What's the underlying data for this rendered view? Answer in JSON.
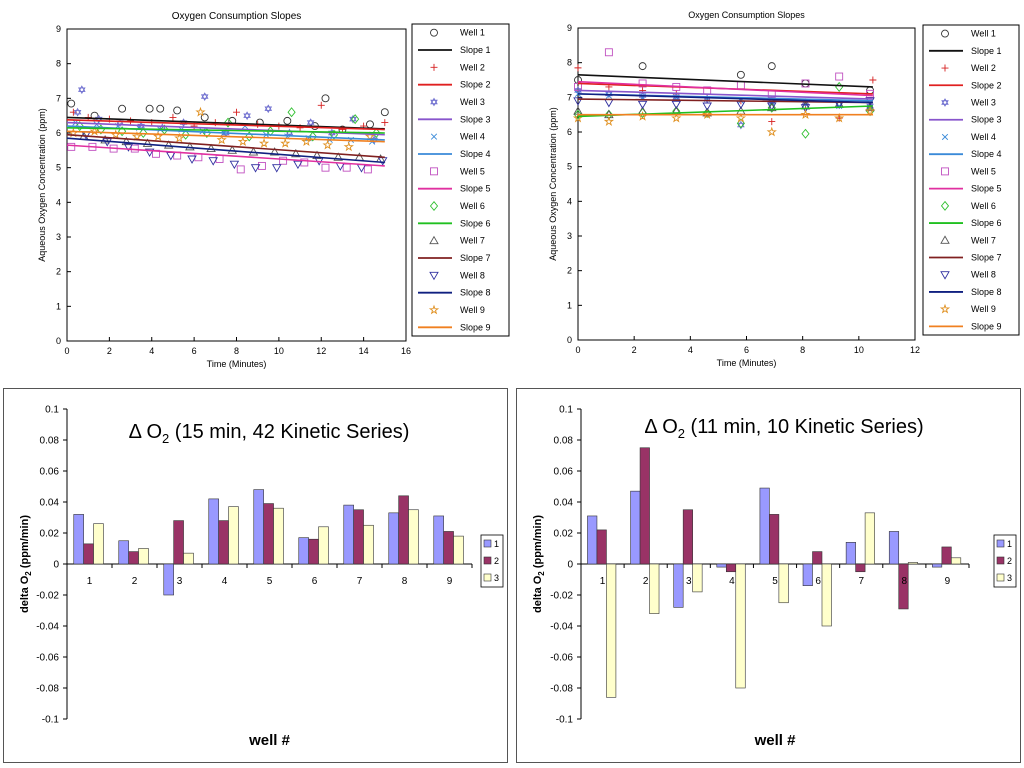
{
  "chart_data": [
    {
      "type": "scatter",
      "title": "Oxygen Consumption Slopes",
      "xlabel": "Time (Minutes)",
      "ylabel": "Aqueous Oxygen Concentration (ppm)",
      "xlim": [
        0,
        16
      ],
      "ylim": [
        0,
        9
      ],
      "xticks": [
        0,
        2,
        4,
        6,
        8,
        10,
        12,
        14,
        16
      ],
      "yticks": [
        0,
        1,
        2,
        3,
        4,
        5,
        6,
        7,
        8,
        9
      ],
      "legend": [
        "Well 1",
        "Slope 1",
        "Well 2",
        "Slope 2",
        "Well 3",
        "Slope 3",
        "Well 4",
        "Slope 4",
        "Well 5",
        "Slope 5",
        "Well 6",
        "Slope 6",
        "Well 7",
        "Slope 7",
        "Well 8",
        "Slope 8",
        "Well 9",
        "Slope 9"
      ],
      "wells": [
        {
          "name": "Well 1",
          "marker": "circle",
          "color": "#333333",
          "x": [
            0.2,
            1.3,
            2.6,
            3.9,
            4.4,
            5.2,
            6.5,
            7.8,
            9.1,
            10.4,
            11.7,
            12.2,
            13.0,
            14.3,
            15.0
          ],
          "y": [
            6.85,
            6.5,
            6.7,
            6.7,
            6.7,
            6.65,
            6.45,
            6.35,
            6.3,
            6.35,
            6.2,
            7.0,
            6.1,
            6.25,
            6.6
          ]
        },
        {
          "name": "Well 2",
          "marker": "plus",
          "color": "#d62020",
          "x": [
            0.3,
            1.0,
            2.0,
            3.0,
            4.0,
            5.0,
            6.0,
            7.0,
            8.0,
            9.0,
            10.0,
            11.0,
            12.0,
            13.0,
            14.0,
            15.0
          ],
          "y": [
            6.6,
            6.45,
            6.4,
            6.35,
            6.3,
            6.45,
            6.2,
            6.3,
            6.6,
            6.25,
            6.2,
            6.15,
            6.8,
            6.1,
            6.2,
            6.3
          ]
        },
        {
          "name": "Well 3",
          "marker": "hexagram",
          "color": "#7070d0",
          "x": [
            0.5,
            0.7,
            1.5,
            2.5,
            3.5,
            4.5,
            5.5,
            6.5,
            7.5,
            8.5,
            9.5,
            10.5,
            11.5,
            12.5,
            13.5,
            14.5
          ],
          "y": [
            6.6,
            7.25,
            6.4,
            6.3,
            6.2,
            6.15,
            6.3,
            7.05,
            6.0,
            6.5,
            6.7,
            6.0,
            6.3,
            6.0,
            6.4,
            5.8
          ]
        },
        {
          "name": "Well 4",
          "marker": "x",
          "color": "#3a8ad8",
          "x": [
            0.4,
            1.4,
            2.4,
            3.4,
            4.4,
            5.4,
            6.4,
            7.4,
            8.4,
            9.4,
            10.4,
            11.4,
            12.4,
            13.4,
            14.4
          ],
          "y": [
            6.3,
            6.25,
            6.2,
            6.15,
            6.1,
            6.1,
            6.05,
            6.0,
            6.2,
            5.95,
            5.9,
            5.85,
            5.8,
            5.8,
            5.75
          ]
        },
        {
          "name": "Well 5",
          "marker": "square",
          "color": "#c050c0",
          "x": [
            0.2,
            1.2,
            2.2,
            3.2,
            4.2,
            5.2,
            6.2,
            7.2,
            8.2,
            9.2,
            10.2,
            11.2,
            12.2,
            13.2,
            14.2
          ],
          "y": [
            5.6,
            5.6,
            5.55,
            5.55,
            5.4,
            5.35,
            5.3,
            5.25,
            4.95,
            5.05,
            5.2,
            5.15,
            5.0,
            5.0,
            4.95
          ]
        },
        {
          "name": "Well 6",
          "marker": "diamond",
          "color": "#30c030",
          "x": [
            0.6,
            1.6,
            2.6,
            3.6,
            4.6,
            5.6,
            6.6,
            7.6,
            8.6,
            9.6,
            10.6,
            11.6,
            12.6,
            13.6,
            14.6
          ],
          "y": [
            6.2,
            6.1,
            6.05,
            6.0,
            6.1,
            5.95,
            6.0,
            6.3,
            5.9,
            6.05,
            6.6,
            5.9,
            5.95,
            6.4,
            6.0
          ]
        },
        {
          "name": "Well 7",
          "marker": "triangle-up",
          "color": "#555555",
          "x": [
            0.8,
            1.8,
            2.8,
            3.8,
            4.8,
            5.8,
            6.8,
            7.8,
            8.8,
            9.8,
            10.8,
            11.8,
            12.8,
            13.8,
            14.8
          ],
          "y": [
            5.9,
            5.8,
            5.75,
            5.7,
            5.65,
            5.6,
            5.55,
            5.5,
            5.45,
            5.45,
            5.4,
            5.35,
            5.3,
            5.3,
            5.25
          ]
        },
        {
          "name": "Well 8",
          "marker": "triangle-down",
          "color": "#3030a0",
          "x": [
            0.9,
            1.9,
            2.9,
            3.9,
            4.9,
            5.9,
            6.9,
            7.9,
            8.9,
            9.9,
            10.9,
            11.9,
            12.9,
            13.9,
            14.9
          ],
          "y": [
            5.95,
            5.75,
            5.6,
            5.45,
            5.35,
            5.25,
            5.2,
            5.1,
            5.0,
            5.0,
            5.1,
            5.2,
            5.05,
            5.0,
            5.2
          ]
        },
        {
          "name": "Well 9",
          "marker": "star",
          "color": "#e09020",
          "x": [
            0.3,
            1.3,
            2.3,
            3.3,
            4.3,
            5.3,
            6.3,
            7.3,
            8.3,
            9.3,
            10.3,
            11.3,
            12.3,
            13.3,
            14.3
          ],
          "y": [
            6.0,
            6.05,
            5.95,
            5.9,
            5.9,
            5.85,
            6.6,
            5.8,
            5.75,
            5.7,
            5.7,
            5.75,
            5.65,
            5.6,
            5.9
          ]
        }
      ],
      "slopes": [
        {
          "name": "Slope 1",
          "color": "#111111",
          "y0": 6.45,
          "y1": 6.12
        },
        {
          "name": "Slope 2",
          "color": "#e02020",
          "y0": 6.38,
          "y1": 6.1
        },
        {
          "name": "Slope 3",
          "color": "#8855cc",
          "y0": 6.3,
          "y1": 5.95
        },
        {
          "name": "Slope 4",
          "color": "#3a8ad8",
          "y0": 6.2,
          "y1": 5.8
        },
        {
          "name": "Slope 5",
          "color": "#e030a0",
          "y0": 5.65,
          "y1": 5.05
        },
        {
          "name": "Slope 6",
          "color": "#20c020",
          "y0": 6.15,
          "y1": 6.0
        },
        {
          "name": "Slope 7",
          "color": "#802020",
          "y0": 5.95,
          "y1": 5.3
        },
        {
          "name": "Slope 8",
          "color": "#102080",
          "y0": 5.85,
          "y1": 5.15
        },
        {
          "name": "Slope 9",
          "color": "#f08020",
          "y0": 6.05,
          "y1": 5.75
        }
      ],
      "slope_x_range": [
        0,
        15
      ]
    },
    {
      "type": "scatter",
      "title": "Oxygen Consumption Slopes",
      "xlabel": "Time (Minutes)",
      "ylabel": "Aqueous Oxygen Concentration (ppm)",
      "xlim": [
        0,
        12
      ],
      "ylim": [
        0,
        9
      ],
      "xticks": [
        0,
        2,
        4,
        6,
        8,
        10,
        12
      ],
      "yticks": [
        0,
        1,
        2,
        3,
        4,
        5,
        6,
        7,
        8,
        9
      ],
      "legend": [
        "Well 1",
        "Slope 1",
        "Well 2",
        "Slope 2",
        "Well 3",
        "Slope 3",
        "Well 4",
        "Slope 4",
        "Well 5",
        "Slope 5",
        "Well 6",
        "Slope 6",
        "Well 7",
        "Slope 7",
        "Well 8",
        "Slope 8",
        "Well 9",
        "Slope 9"
      ],
      "wells": [
        {
          "name": "Well 1",
          "marker": "circle",
          "color": "#333333",
          "x": [
            0.0,
            2.3,
            5.8,
            6.9,
            8.1,
            10.4
          ],
          "y": [
            7.5,
            7.9,
            7.65,
            7.9,
            7.4,
            7.2
          ]
        },
        {
          "name": "Well 2",
          "marker": "plus",
          "color": "#d62020",
          "x": [
            0.0,
            1.1,
            2.3,
            3.5,
            4.6,
            5.8,
            6.9,
            8.1,
            9.3,
            10.5
          ],
          "y": [
            7.85,
            7.3,
            7.2,
            7.1,
            7.0,
            6.9,
            6.3,
            6.8,
            6.4,
            7.5
          ]
        },
        {
          "name": "Well 3",
          "marker": "hexagram",
          "color": "#7070d0",
          "x": [
            0.0,
            1.1,
            2.3,
            3.5,
            4.6,
            5.8,
            6.9,
            8.1,
            9.3,
            10.4
          ],
          "y": [
            7.2,
            7.1,
            7.05,
            7.0,
            6.95,
            6.2,
            6.9,
            6.85,
            6.8,
            6.75
          ]
        },
        {
          "name": "Well 4",
          "marker": "x",
          "color": "#3a8ad8",
          "x": [
            0.0,
            1.1,
            2.3,
            3.5,
            4.6,
            5.8,
            6.9,
            8.1,
            9.3,
            10.4
          ],
          "y": [
            7.1,
            7.05,
            7.0,
            7.0,
            6.95,
            6.9,
            6.85,
            6.8,
            6.75,
            6.7
          ]
        },
        {
          "name": "Well 5",
          "marker": "square",
          "color": "#c050c0",
          "x": [
            0.0,
            1.1,
            2.3,
            3.5,
            4.6,
            5.8,
            6.9,
            8.1,
            9.3,
            10.4
          ],
          "y": [
            7.3,
            8.3,
            7.4,
            7.3,
            7.2,
            7.35,
            7.1,
            7.4,
            7.6,
            7.1
          ]
        },
        {
          "name": "Well 6",
          "marker": "diamond",
          "color": "#30c030",
          "x": [
            0.0,
            1.1,
            2.3,
            3.5,
            4.6,
            5.8,
            6.9,
            8.1,
            9.3,
            10.4
          ],
          "y": [
            6.5,
            6.5,
            6.55,
            6.6,
            6.55,
            6.25,
            6.7,
            5.95,
            7.3,
            6.6
          ]
        },
        {
          "name": "Well 7",
          "marker": "triangle-up",
          "color": "#555555",
          "x": [
            0.0,
            1.1,
            2.3,
            3.5,
            4.6,
            5.8,
            6.9,
            8.1,
            9.3,
            10.4
          ],
          "y": [
            6.6,
            6.5,
            6.6,
            6.6,
            6.55,
            6.6,
            6.7,
            6.75,
            6.8,
            6.7
          ]
        },
        {
          "name": "Well 8",
          "marker": "triangle-down",
          "color": "#3030a0",
          "x": [
            0.0,
            1.1,
            2.3,
            3.5,
            4.6,
            5.8,
            6.9,
            8.1,
            9.3,
            10.4
          ],
          "y": [
            6.9,
            6.85,
            6.8,
            6.8,
            6.75,
            6.8,
            6.75,
            6.7,
            6.8,
            6.9
          ]
        },
        {
          "name": "Well 9",
          "marker": "star",
          "color": "#e09020",
          "x": [
            0.0,
            1.1,
            2.3,
            3.5,
            4.6,
            5.8,
            6.9,
            8.1,
            9.3,
            10.4
          ],
          "y": [
            6.4,
            6.3,
            6.45,
            6.4,
            6.5,
            6.4,
            6.0,
            6.5,
            6.4,
            6.6
          ]
        }
      ],
      "slopes": [
        {
          "name": "Slope 1",
          "color": "#111111",
          "y0": 7.65,
          "y1": 7.3
        },
        {
          "name": "Slope 2",
          "color": "#e02020",
          "y0": 7.4,
          "y1": 7.1
        },
        {
          "name": "Slope 3",
          "color": "#8855cc",
          "y0": 7.2,
          "y1": 6.95
        },
        {
          "name": "Slope 4",
          "color": "#3a8ad8",
          "y0": 7.1,
          "y1": 6.9
        },
        {
          "name": "Slope 5",
          "color": "#e030a0",
          "y0": 7.45,
          "y1": 7.05
        },
        {
          "name": "Slope 6",
          "color": "#20c020",
          "y0": 6.45,
          "y1": 6.75
        },
        {
          "name": "Slope 7",
          "color": "#802020",
          "y0": 6.95,
          "y1": 6.85
        },
        {
          "name": "Slope 8",
          "color": "#102080",
          "y0": 7.1,
          "y1": 6.85
        },
        {
          "name": "Slope 9",
          "color": "#f08020",
          "y0": 6.5,
          "y1": 6.5
        }
      ],
      "slope_x_range": [
        0,
        10.5
      ]
    },
    {
      "type": "bar",
      "title_prefix": "Δ O",
      "title_sub": "2",
      "title_suffix": " (15 min, 42 Kinetic Series)",
      "ylabel_prefix": "delta O",
      "ylabel_sub": "2",
      "ylabel_suffix": " (ppm/min)",
      "xlabel": "well #",
      "categories": [
        "1",
        "2",
        "3",
        "4",
        "5",
        "6",
        "7",
        "8",
        "9"
      ],
      "ylim": [
        -0.1,
        0.1
      ],
      "yticks": [
        -0.1,
        -0.08,
        -0.06,
        -0.04,
        -0.02,
        0,
        0.02,
        0.04,
        0.06,
        0.08,
        0.1
      ],
      "series": [
        {
          "name": "1",
          "color": "#9999ff",
          "values": [
            0.032,
            0.015,
            -0.02,
            0.042,
            0.048,
            0.017,
            0.038,
            0.033,
            0.031
          ]
        },
        {
          "name": "2",
          "color": "#993366",
          "values": [
            0.013,
            0.008,
            0.028,
            0.028,
            0.039,
            0.016,
            0.035,
            0.044,
            0.021
          ]
        },
        {
          "name": "3",
          "color": "#ffffcc",
          "values": [
            0.026,
            0.01,
            0.007,
            0.037,
            0.036,
            0.024,
            0.025,
            0.035,
            0.018
          ]
        }
      ]
    },
    {
      "type": "bar",
      "title_prefix": "Δ O",
      "title_sub": "2",
      "title_suffix": " (11 min, 10 Kinetic Series)",
      "ylabel_prefix": "delta O",
      "ylabel_sub": "2",
      "ylabel_suffix": " (ppm/min)",
      "xlabel": "well #",
      "categories": [
        "1",
        "2",
        "3",
        "4",
        "5",
        "6",
        "7",
        "8",
        "9"
      ],
      "ylim": [
        -0.1,
        0.1
      ],
      "yticks": [
        -0.1,
        -0.08,
        -0.06,
        -0.04,
        -0.02,
        0,
        0.02,
        0.04,
        0.06,
        0.08,
        0.1
      ],
      "series": [
        {
          "name": "1",
          "color": "#9999ff",
          "values": [
            0.031,
            0.047,
            -0.028,
            -0.002,
            0.049,
            -0.014,
            0.014,
            0.021,
            -0.002
          ]
        },
        {
          "name": "2",
          "color": "#993366",
          "values": [
            0.022,
            0.075,
            0.035,
            -0.005,
            0.032,
            0.008,
            -0.005,
            -0.029,
            0.011
          ]
        },
        {
          "name": "3",
          "color": "#ffffcc",
          "values": [
            -0.086,
            -0.032,
            -0.018,
            -0.08,
            -0.025,
            -0.04,
            0.033,
            0.001,
            0.004
          ]
        }
      ]
    }
  ]
}
